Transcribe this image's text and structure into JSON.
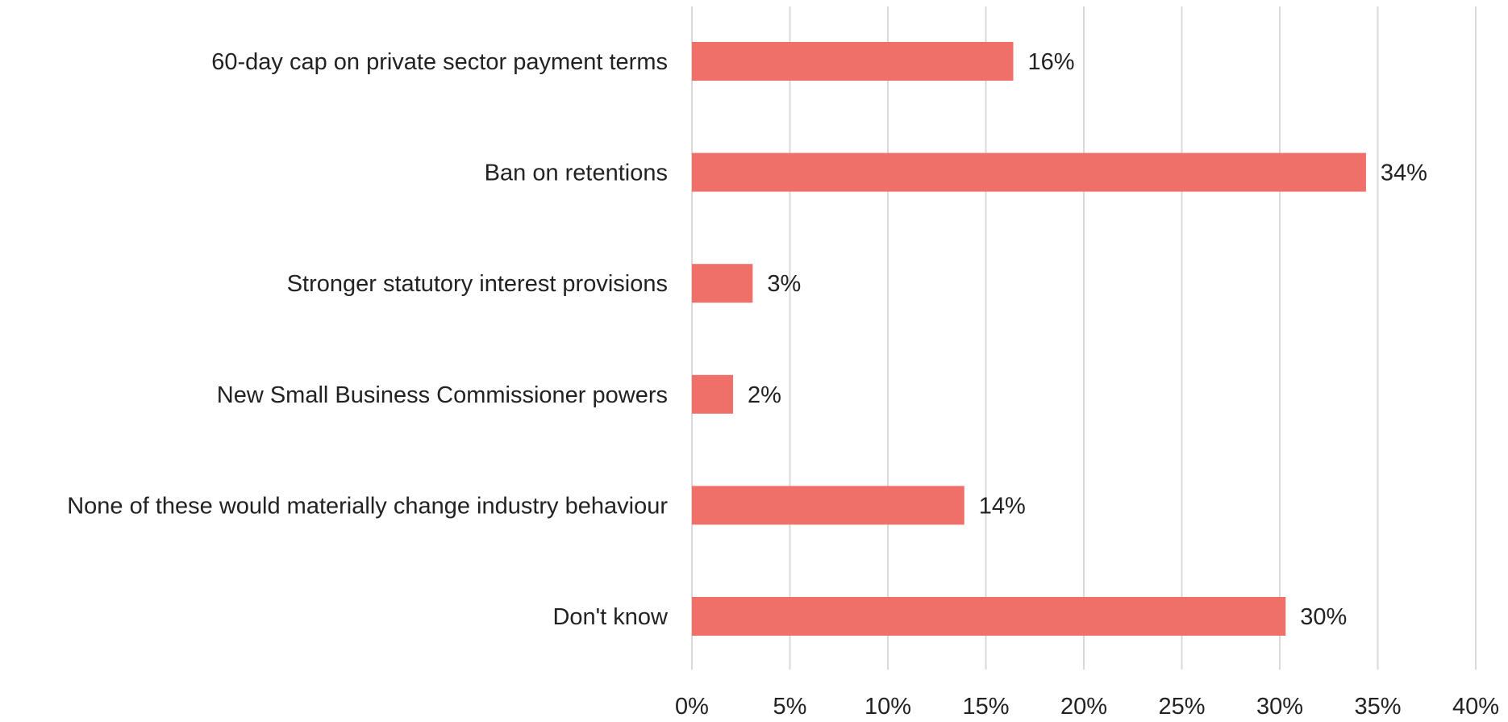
{
  "chart_data": {
    "type": "bar",
    "orientation": "horizontal",
    "title": "",
    "xlabel": "",
    "ylabel": "",
    "categories": [
      "60-day cap on private sector payment terms",
      "Ban on retentions",
      "Stronger statutory interest provisions",
      "New Small Business Commissioner powers",
      "None of these would materially change industry behaviour",
      "Don't know"
    ],
    "values": [
      16.4,
      34.4,
      3.1,
      2.1,
      13.9,
      30.3
    ],
    "value_labels": [
      "16%",
      "34%",
      "3%",
      "2%",
      "14%",
      "30%"
    ],
    "xlim": [
      0,
      40
    ],
    "ticks": [
      0,
      5,
      10,
      15,
      20,
      25,
      30,
      35,
      40
    ],
    "tick_labels": [
      "0%",
      "5%",
      "10%",
      "15%",
      "20%",
      "25%",
      "30%",
      "35%",
      "40%"
    ],
    "grid": "vertical",
    "legend": "none",
    "bar_color": "#ee7068",
    "grid_color": "#d9d9d9"
  }
}
